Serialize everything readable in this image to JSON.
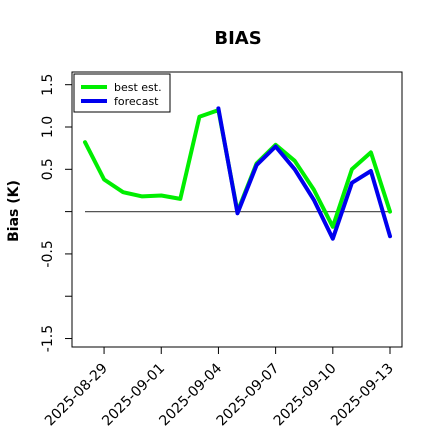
{
  "chart_data": {
    "type": "line",
    "title": "BIAS",
    "xlabel": "",
    "ylabel": "Bias (K)",
    "ylim": [
      -1.6,
      1.65
    ],
    "yticks": [
      -1.5,
      -1.0,
      -0.5,
      0.0,
      0.5,
      1.0,
      1.5
    ],
    "ytick_labels": [
      "-1.5",
      "",
      "-0.5",
      "",
      "0.5",
      "1.0",
      "1.5"
    ],
    "x": [
      "2025-08-28",
      "2025-08-29",
      "2025-08-30",
      "2025-08-31",
      "2025-09-01",
      "2025-09-02",
      "2025-09-03",
      "2025-09-04",
      "2025-09-05",
      "2025-09-06",
      "2025-09-07",
      "2025-09-08",
      "2025-09-09",
      "2025-09-10",
      "2025-09-11",
      "2025-09-12",
      "2025-09-13"
    ],
    "xticks": [
      "2025-08-29",
      "2025-09-01",
      "2025-09-04",
      "2025-09-07",
      "2025-09-10",
      "2025-09-13"
    ],
    "highlight_tick": "2025-09-04",
    "highlight_color": "#228B22",
    "zero_line": true,
    "legend_position": "top-left",
    "series": [
      {
        "name": "best est.",
        "color": "#00ee00",
        "values": [
          0.82,
          0.38,
          0.23,
          0.18,
          0.19,
          0.15,
          1.12,
          1.2,
          0.0,
          0.57,
          0.79,
          0.6,
          0.26,
          -0.18,
          0.5,
          0.7,
          0.0
        ]
      },
      {
        "name": "forecast",
        "color": "#0000ee",
        "values": [
          null,
          null,
          null,
          null,
          null,
          null,
          null,
          1.22,
          -0.02,
          0.55,
          0.77,
          0.5,
          0.14,
          -0.32,
          0.34,
          0.48,
          -0.29
        ]
      }
    ]
  }
}
